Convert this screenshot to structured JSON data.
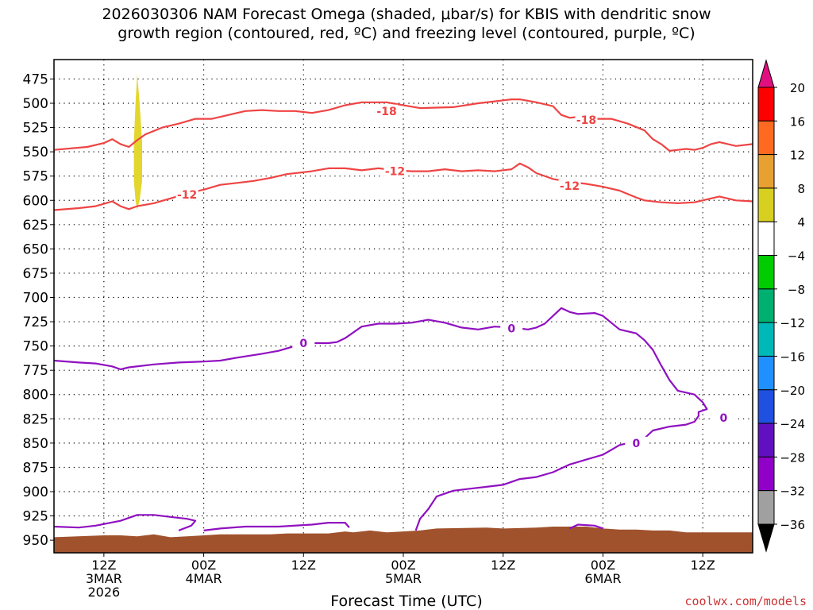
{
  "header": {
    "title": "2026030306 NAM Forecast Omega (shaded, μbar/s) for KBIS with dendritic snow\ngrowth region (contoured, red, ºC) and freezing level (contoured, purple, ºC)"
  },
  "footer": {
    "credit": "coolwx.com/models",
    "xlabel": "Forecast Time (UTC)"
  },
  "chart_data": {
    "type": "contour",
    "title": "2026030306 NAM Forecast Omega (shaded, μbar/s) for KBIS with dendritic snow growth region (contoured, red, ºC) and freezing level (contoured, purple, ºC)",
    "xlabel": "Forecast Time (UTC)",
    "ylabel": "",
    "y_axis": {
      "ticks": [
        475,
        500,
        525,
        550,
        575,
        600,
        625,
        650,
        675,
        700,
        725,
        750,
        775,
        800,
        825,
        850,
        875,
        900,
        925,
        950
      ],
      "ylim": [
        455,
        963
      ],
      "inverted": true,
      "grid": "dotted"
    },
    "x_axis": {
      "units": "forecast hours from 2026-03-03 06Z",
      "xlim": [
        0,
        84
      ],
      "ticks": [
        {
          "h": 6,
          "label": "12Z",
          "sub1": "3MAR",
          "sub2": "2026"
        },
        {
          "h": 18,
          "label": "00Z",
          "sub1": "4MAR",
          "sub2": ""
        },
        {
          "h": 30,
          "label": "12Z",
          "sub1": "",
          "sub2": ""
        },
        {
          "h": 42,
          "label": "00Z",
          "sub1": "5MAR",
          "sub2": ""
        },
        {
          "h": 54,
          "label": "12Z",
          "sub1": "",
          "sub2": ""
        },
        {
          "h": 66,
          "label": "00Z",
          "sub1": "6MAR",
          "sub2": ""
        },
        {
          "h": 78,
          "label": "12Z",
          "sub1": "",
          "sub2": ""
        }
      ],
      "grid": "dotted"
    },
    "colorbar": {
      "labels": [
        "20",
        "16",
        "12",
        "8",
        "4",
        "−4",
        "−8",
        "−12",
        "−16",
        "−20",
        "−24",
        "−28",
        "−32",
        "−36"
      ],
      "colors": [
        "#ff0000",
        "#ff6a20",
        "#e8a030",
        "#d8d020",
        "#ffffff",
        "#00cc00",
        "#00b070",
        "#00b8b8",
        "#2090ff",
        "#2050e0",
        "#6010c0",
        "#9000c8",
        "#a0a0a0"
      ],
      "top_arrow_color": "#e01080",
      "bottom_arrow_color": "#000000"
    },
    "series": [
      {
        "name": "-18",
        "color": "#ef4444",
        "points": [
          [
            0,
            548
          ],
          [
            4,
            545
          ],
          [
            6,
            541
          ],
          [
            7,
            537
          ],
          [
            8,
            542
          ],
          [
            9,
            545
          ],
          [
            10,
            538
          ],
          [
            11,
            532
          ],
          [
            13,
            525
          ],
          [
            15,
            521
          ],
          [
            17,
            516
          ],
          [
            19,
            516
          ],
          [
            21,
            512
          ],
          [
            23,
            508
          ],
          [
            25,
            507
          ],
          [
            27,
            508
          ],
          [
            29,
            508
          ],
          [
            31,
            510
          ],
          [
            33,
            507
          ],
          [
            35,
            502
          ],
          [
            37,
            499
          ],
          [
            40,
            499
          ],
          [
            44,
            505
          ],
          [
            48,
            504
          ],
          [
            51,
            500
          ],
          [
            53,
            498
          ],
          [
            55,
            496
          ],
          [
            56,
            496
          ],
          [
            58,
            499
          ],
          [
            60,
            503
          ],
          [
            61,
            512
          ],
          [
            62,
            515
          ],
          [
            63,
            514
          ],
          [
            65,
            516
          ],
          [
            67,
            516
          ],
          [
            69,
            521
          ],
          [
            71,
            528
          ],
          [
            72,
            537
          ],
          [
            73,
            542
          ],
          [
            74,
            549
          ],
          [
            75,
            548
          ],
          [
            76,
            547
          ],
          [
            77,
            548
          ],
          [
            78,
            546
          ],
          [
            79,
            542
          ],
          [
            80,
            540
          ],
          [
            82,
            544
          ],
          [
            84,
            542
          ]
        ],
        "labels": [
          [
            40,
            508
          ],
          [
            64,
            517
          ]
        ]
      },
      {
        "name": "-12",
        "color": "#ef4444",
        "points": [
          [
            0,
            610
          ],
          [
            3,
            608
          ],
          [
            5,
            606
          ],
          [
            7,
            601
          ],
          [
            8,
            606
          ],
          [
            9,
            609
          ],
          [
            10,
            606
          ],
          [
            12,
            603
          ],
          [
            14,
            598
          ],
          [
            16,
            593
          ],
          [
            18,
            589
          ],
          [
            20,
            584
          ],
          [
            22,
            582
          ],
          [
            24,
            580
          ],
          [
            26,
            577
          ],
          [
            28,
            573
          ],
          [
            31,
            570
          ],
          [
            33,
            567
          ],
          [
            35,
            567
          ],
          [
            37,
            569
          ],
          [
            39,
            567
          ],
          [
            41,
            569
          ],
          [
            43,
            570
          ],
          [
            45,
            570
          ],
          [
            47,
            568
          ],
          [
            49,
            570
          ],
          [
            51,
            569
          ],
          [
            53,
            570
          ],
          [
            55,
            568
          ],
          [
            56,
            562
          ],
          [
            57,
            566
          ],
          [
            58,
            572
          ],
          [
            60,
            578
          ],
          [
            62,
            581
          ],
          [
            64,
            583
          ],
          [
            66,
            586
          ],
          [
            68,
            590
          ],
          [
            70,
            597
          ],
          [
            71,
            600
          ],
          [
            73,
            602
          ],
          [
            75,
            603
          ],
          [
            77,
            602
          ],
          [
            79,
            598
          ],
          [
            80,
            596
          ],
          [
            82,
            600
          ],
          [
            84,
            601
          ]
        ],
        "labels": [
          [
            16,
            594
          ],
          [
            41,
            570
          ],
          [
            62,
            585
          ]
        ]
      },
      {
        "name": "0",
        "color": "#9010c0",
        "points": [
          [
            0,
            765
          ],
          [
            3,
            767
          ],
          [
            5,
            768
          ],
          [
            7,
            771
          ],
          [
            8,
            774
          ],
          [
            9,
            772
          ],
          [
            12,
            769
          ],
          [
            15,
            767
          ],
          [
            18,
            766
          ],
          [
            20,
            765
          ],
          [
            22,
            762
          ],
          [
            25,
            758
          ],
          [
            27,
            755
          ],
          [
            29,
            750
          ],
          [
            31,
            747
          ],
          [
            33,
            747
          ],
          [
            34,
            746
          ],
          [
            35,
            742
          ],
          [
            36,
            736
          ],
          [
            37,
            730
          ],
          [
            39,
            727
          ],
          [
            41,
            727
          ],
          [
            43,
            726
          ],
          [
            45,
            723
          ],
          [
            47,
            726
          ],
          [
            49,
            731
          ],
          [
            51,
            733
          ],
          [
            53,
            730
          ],
          [
            55,
            731
          ],
          [
            57,
            733
          ],
          [
            58,
            731
          ],
          [
            59,
            727
          ],
          [
            60,
            719
          ],
          [
            61,
            711
          ],
          [
            62,
            715
          ],
          [
            63,
            717
          ],
          [
            65,
            716
          ],
          [
            66,
            719
          ],
          [
            67,
            726
          ],
          [
            68,
            733
          ],
          [
            70,
            737
          ],
          [
            71,
            744
          ],
          [
            72,
            754
          ],
          [
            73,
            770
          ],
          [
            74,
            785
          ],
          [
            75,
            796
          ],
          [
            77,
            800
          ],
          [
            78,
            808
          ],
          [
            78.5,
            815
          ],
          [
            77.5,
            818
          ],
          [
            77.5,
            822
          ],
          [
            77,
            828
          ],
          [
            76,
            831
          ],
          [
            74,
            833
          ],
          [
            72,
            837
          ],
          [
            71,
            845
          ],
          [
            69,
            850
          ],
          [
            68,
            852
          ],
          [
            67,
            857
          ],
          [
            66,
            862
          ],
          [
            64,
            867
          ],
          [
            62,
            872
          ],
          [
            60,
            880
          ],
          [
            58,
            885
          ],
          [
            56,
            887
          ],
          [
            54,
            893
          ],
          [
            52,
            895
          ],
          [
            50,
            897
          ],
          [
            48,
            899
          ],
          [
            46,
            905
          ],
          [
            45,
            918
          ],
          [
            44,
            928
          ],
          [
            43.5,
            940
          ]
        ],
        "labels": [
          [
            30,
            747
          ],
          [
            55,
            732
          ],
          [
            70,
            850
          ],
          [
            80.5,
            824
          ]
        ]
      },
      {
        "name": "0",
        "color": "#9010c0",
        "points": [
          [
            0,
            936
          ],
          [
            3,
            937
          ],
          [
            5,
            935
          ],
          [
            8,
            930
          ],
          [
            10,
            924
          ],
          [
            12,
            924
          ],
          [
            14,
            926
          ],
          [
            16,
            928
          ],
          [
            17,
            930
          ],
          [
            16.5,
            935
          ],
          [
            15,
            940
          ]
        ]
      },
      {
        "name": "0",
        "color": "#9010c0",
        "points": [
          [
            18,
            940
          ],
          [
            20,
            938
          ],
          [
            23,
            936
          ],
          [
            27,
            936
          ],
          [
            31,
            934
          ],
          [
            33,
            932
          ],
          [
            35,
            932
          ],
          [
            35.5,
            937
          ]
        ]
      },
      {
        "name": "0",
        "color": "#9010c0",
        "points": [
          [
            62,
            938
          ],
          [
            63,
            934
          ],
          [
            65,
            935
          ],
          [
            66,
            938
          ]
        ]
      },
      {
        "name": "4",
        "color": "#e3d72e",
        "fill": true,
        "points": [
          [
            10,
            470
          ],
          [
            10.3,
            500
          ],
          [
            10.6,
            540
          ],
          [
            10.6,
            580
          ],
          [
            10.3,
            600
          ],
          [
            10,
            610
          ],
          [
            9.8,
            600
          ],
          [
            9.6,
            580
          ],
          [
            9.6,
            540
          ],
          [
            9.8,
            500
          ]
        ]
      }
    ],
    "terrain": {
      "color": "#a0522d",
      "points": [
        [
          0,
          947
        ],
        [
          6,
          945
        ],
        [
          8,
          945
        ],
        [
          10,
          946
        ],
        [
          12,
          944
        ],
        [
          14,
          947
        ],
        [
          16,
          946
        ],
        [
          18,
          945
        ],
        [
          20,
          944
        ],
        [
          26,
          944
        ],
        [
          28,
          943
        ],
        [
          33,
          943
        ],
        [
          35,
          941
        ],
        [
          36,
          942
        ],
        [
          38,
          940
        ],
        [
          40,
          942
        ],
        [
          42,
          941
        ],
        [
          44,
          940
        ],
        [
          46,
          938
        ],
        [
          52,
          937
        ],
        [
          54,
          938
        ],
        [
          58,
          937
        ],
        [
          60,
          936
        ],
        [
          62,
          936
        ],
        [
          64,
          936
        ],
        [
          66,
          938
        ],
        [
          68,
          939
        ],
        [
          70,
          939
        ],
        [
          72,
          940
        ],
        [
          74,
          940
        ],
        [
          76,
          942
        ],
        [
          80,
          942
        ],
        [
          84,
          942
        ]
      ]
    }
  }
}
